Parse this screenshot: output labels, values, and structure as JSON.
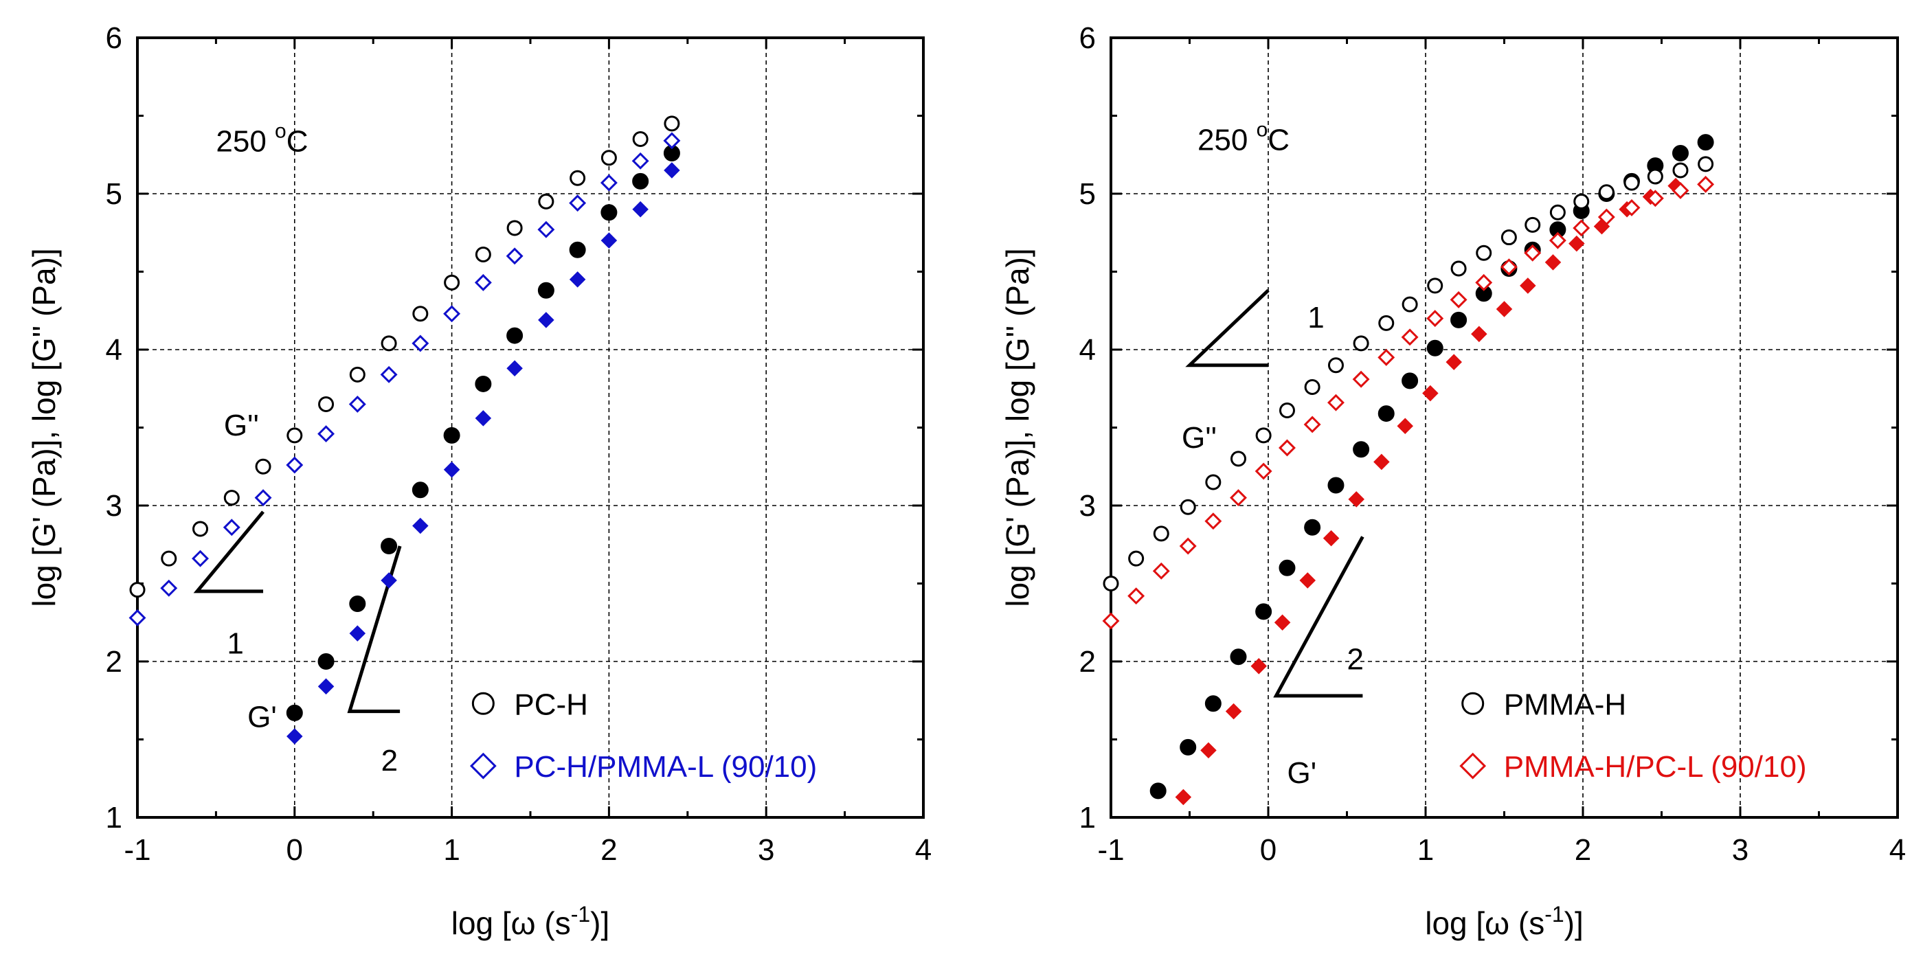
{
  "chart_data": [
    {
      "type": "scatter",
      "title": "",
      "xlabel": "log [ω (s-1)]",
      "xlabel_parts": {
        "pre": "log [",
        "omega": "ω",
        "mid": " (s",
        "sup": "-1",
        "post": ")]"
      },
      "ylabel": "log [G' (Pa)], log [G'' (Pa)]",
      "xlim": [
        -1,
        4
      ],
      "ylim": [
        1,
        6
      ],
      "xticks": [
        "-1",
        "0",
        "1",
        "2",
        "3",
        "4"
      ],
      "yticks": [
        "1",
        "2",
        "3",
        "4",
        "5",
        "6"
      ],
      "grid": true,
      "temperature": {
        "value": "250 ",
        "sup": "o",
        "unit": "C"
      },
      "annotations": {
        "g2": "G''",
        "g1": "G'",
        "slope1": "1",
        "slope2": "2"
      },
      "legend": [
        {
          "label": "PC-H",
          "marker": "circle",
          "color": "#000000"
        },
        {
          "label": "PC-H/PMMA-L (90/10)",
          "marker": "diamond",
          "color": "#1010cc"
        }
      ],
      "series": [
        {
          "name": "PC-H G'",
          "marker": "circle",
          "filled": true,
          "color": "#000000",
          "x": [
            0,
            0.2,
            0.4,
            0.6,
            0.8,
            1.0,
            1.2,
            1.4,
            1.6,
            1.8,
            2.0,
            2.2,
            2.4
          ],
          "y": [
            1.67,
            2.0,
            2.37,
            2.74,
            3.1,
            3.45,
            3.78,
            4.09,
            4.38,
            4.64,
            4.88,
            5.08,
            5.26
          ]
        },
        {
          "name": "PC-H G''",
          "marker": "circle",
          "filled": false,
          "color": "#000000",
          "x": [
            -1.0,
            -0.8,
            -0.6,
            -0.4,
            -0.2,
            0,
            0.2,
            0.4,
            0.6,
            0.8,
            1.0,
            1.2,
            1.4,
            1.6,
            1.8,
            2.0,
            2.2,
            2.4
          ],
          "y": [
            2.46,
            2.66,
            2.85,
            3.05,
            3.25,
            3.45,
            3.65,
            3.84,
            4.04,
            4.23,
            4.43,
            4.61,
            4.78,
            4.95,
            5.1,
            5.23,
            5.35,
            5.45
          ]
        },
        {
          "name": "PC-H/PMMA-L (90/10) G'",
          "marker": "diamond",
          "filled": true,
          "color": "#1010cc",
          "x": [
            0,
            0.2,
            0.4,
            0.6,
            0.8,
            1.0,
            1.2,
            1.4,
            1.6,
            1.8,
            2.0,
            2.2,
            2.4
          ],
          "y": [
            1.52,
            1.84,
            2.18,
            2.52,
            2.87,
            3.23,
            3.56,
            3.88,
            4.19,
            4.45,
            4.7,
            4.9,
            5.15
          ]
        },
        {
          "name": "PC-H/PMMA-L (90/10) G''",
          "marker": "diamond",
          "filled": false,
          "color": "#1010cc",
          "x": [
            -1.0,
            -0.8,
            -0.6,
            -0.4,
            -0.2,
            0,
            0.2,
            0.4,
            0.6,
            0.8,
            1.0,
            1.2,
            1.4,
            1.6,
            1.8,
            2.0,
            2.2,
            2.4
          ],
          "y": [
            2.28,
            2.47,
            2.66,
            2.86,
            3.05,
            3.26,
            3.46,
            3.65,
            3.84,
            4.04,
            4.23,
            4.43,
            4.6,
            4.77,
            4.94,
            5.07,
            5.21,
            5.34
          ]
        }
      ]
    },
    {
      "type": "scatter",
      "title": "",
      "xlabel": "log [ω (s-1)]",
      "xlabel_parts": {
        "pre": "log [",
        "omega": "ω",
        "mid": " (s",
        "sup": "-1",
        "post": ")]"
      },
      "ylabel": "log [G' (Pa)], log [G'' (Pa)]",
      "xlim": [
        -1,
        4
      ],
      "ylim": [
        1,
        6
      ],
      "xticks": [
        "-1",
        "0",
        "1",
        "2",
        "3",
        "4"
      ],
      "yticks": [
        "1",
        "2",
        "3",
        "4",
        "5",
        "6"
      ],
      "grid": true,
      "temperature": {
        "value": "250 ",
        "sup": "o",
        "unit": "C"
      },
      "annotations": {
        "g2": "G''",
        "g1": "G'",
        "slope1": "1",
        "slope2": "2"
      },
      "legend": [
        {
          "label": "PMMA-H",
          "marker": "circle",
          "color": "#000000"
        },
        {
          "label": "PMMA-H/PC-L (90/10)",
          "marker": "diamond",
          "color": "#e01010"
        }
      ],
      "series": [
        {
          "name": "PMMA-H G'",
          "marker": "circle",
          "filled": true,
          "color": "#000000",
          "x": [
            -0.7,
            -0.51,
            -0.35,
            -0.19,
            -0.03,
            0.12,
            0.28,
            0.43,
            0.59,
            0.75,
            0.9,
            1.06,
            1.21,
            1.37,
            1.53,
            1.68,
            1.84,
            1.99,
            2.15,
            2.31,
            2.46,
            2.62,
            2.78
          ],
          "y": [
            1.17,
            1.45,
            1.73,
            2.03,
            2.32,
            2.6,
            2.86,
            3.13,
            3.36,
            3.59,
            3.8,
            4.01,
            4.19,
            4.36,
            4.52,
            4.64,
            4.77,
            4.89,
            5.0,
            5.08,
            5.18,
            5.26,
            5.33
          ]
        },
        {
          "name": "PMMA-H G''",
          "marker": "circle",
          "filled": false,
          "color": "#000000",
          "x": [
            -1.0,
            -0.84,
            -0.68,
            -0.51,
            -0.35,
            -0.19,
            -0.03,
            0.12,
            0.28,
            0.43,
            0.59,
            0.75,
            0.9,
            1.06,
            1.21,
            1.37,
            1.53,
            1.68,
            1.84,
            1.99,
            2.15,
            2.31,
            2.46,
            2.62,
            2.78
          ],
          "y": [
            2.5,
            2.66,
            2.82,
            2.99,
            3.15,
            3.3,
            3.45,
            3.61,
            3.76,
            3.9,
            4.04,
            4.17,
            4.29,
            4.41,
            4.52,
            4.62,
            4.72,
            4.8,
            4.88,
            4.95,
            5.01,
            5.07,
            5.11,
            5.15,
            5.19
          ]
        },
        {
          "name": "PMMA-H/PC-L (90/10) G'",
          "marker": "diamond",
          "filled": true,
          "color": "#e01010",
          "x": [
            -0.54,
            -0.38,
            -0.22,
            -0.06,
            0.09,
            0.25,
            0.4,
            0.56,
            0.72,
            0.87,
            1.03,
            1.18,
            1.34,
            1.5,
            1.65,
            1.81,
            1.96,
            2.12,
            2.28,
            2.43,
            2.59
          ],
          "y": [
            1.13,
            1.43,
            1.68,
            1.97,
            2.25,
            2.52,
            2.79,
            3.04,
            3.28,
            3.51,
            3.72,
            3.92,
            4.1,
            4.26,
            4.41,
            4.56,
            4.68,
            4.79,
            4.9,
            4.98,
            5.05
          ]
        },
        {
          "name": "PMMA-H/PC-L (90/10) G''",
          "marker": "diamond",
          "filled": false,
          "color": "#e01010",
          "x": [
            -1.0,
            -0.84,
            -0.68,
            -0.51,
            -0.35,
            -0.19,
            -0.03,
            0.12,
            0.28,
            0.43,
            0.59,
            0.75,
            0.9,
            1.06,
            1.21,
            1.37,
            1.53,
            1.68,
            1.84,
            1.99,
            2.15,
            2.31,
            2.46,
            2.62,
            2.78
          ],
          "y": [
            2.26,
            2.42,
            2.58,
            2.74,
            2.9,
            3.05,
            3.22,
            3.37,
            3.52,
            3.66,
            3.81,
            3.95,
            4.08,
            4.2,
            4.32,
            4.43,
            4.53,
            4.62,
            4.7,
            4.78,
            4.85,
            4.91,
            4.97,
            5.02,
            5.06
          ]
        }
      ]
    }
  ]
}
